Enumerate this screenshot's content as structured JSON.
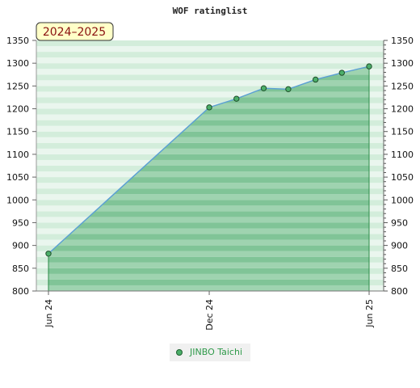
{
  "chart_data": {
    "type": "area",
    "title": "WOF ratinglist",
    "season_label": "2024–2025",
    "x_ticks": [
      {
        "label": "Jun 24",
        "date": "2024-06"
      },
      {
        "label": "Dec 24",
        "date": "2024-12"
      },
      {
        "label": "Jun 25",
        "date": "2025-06"
      }
    ],
    "xlim": [
      "2024-06",
      "2025-06"
    ],
    "ylim": [
      800,
      1350
    ],
    "y_ticks": [
      800,
      850,
      900,
      950,
      1000,
      1050,
      1100,
      1150,
      1200,
      1250,
      1300,
      1350
    ],
    "y_axes": [
      "left",
      "right"
    ],
    "grid": "horizontal bands",
    "legend_position": "bottom",
    "series": [
      {
        "name": "JINBO Taichi",
        "color": "#4caf6a",
        "fill": "#7cc496",
        "line_color": "#5a9fd4",
        "points": [
          {
            "x": "2024-06",
            "y": 882
          },
          {
            "x": "2024-12",
            "y": 1203
          },
          {
            "x": "2025-01",
            "y": 1222
          },
          {
            "x": "2025-02",
            "y": 1245
          },
          {
            "x": "2025-03",
            "y": 1243
          },
          {
            "x": "2025-04",
            "y": 1264
          },
          {
            "x": "2025-05",
            "y": 1279
          },
          {
            "x": "2025-06",
            "y": 1293
          }
        ]
      }
    ]
  }
}
